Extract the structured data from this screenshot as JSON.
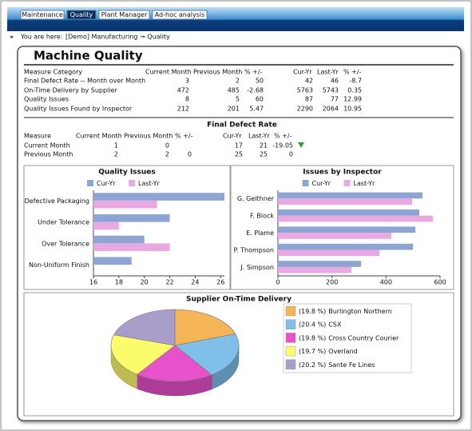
{
  "tabs": [
    "Maintenance",
    "Quality",
    "Plant Manager",
    "Ad-hoc analysis"
  ],
  "breadcrumb": {
    "label": "You are here:",
    "path": "[Demo] Manufacturing → Quality"
  },
  "title": "Machine Quality",
  "summary_table": {
    "headers": [
      "Measure Category",
      "Current Month",
      "Previous Month",
      "% +/-",
      "Cur-Yr",
      "Last-Yr",
      "% +/-"
    ],
    "rows": [
      [
        "Final Defect Rate -- Month over Month",
        3,
        2,
        50,
        42,
        46,
        -8.7
      ],
      [
        "On-Time Delivery by Supplier",
        472,
        485,
        -2.68,
        5763,
        5743,
        0.35
      ],
      [
        "Quality Issues",
        8,
        5,
        60,
        87,
        77,
        12.99
      ],
      [
        "Quality Issues Found by Inspector",
        212,
        201,
        5.47,
        2290,
        2064,
        10.95
      ]
    ]
  },
  "defect_table": {
    "title": "Final Defect Rate",
    "headers": [
      "Measure",
      "Current Month",
      "Previous Month",
      "% +/-",
      "Cur-Yr",
      "Last-Yr",
      "% +/-"
    ],
    "rows": [
      [
        "Current Month",
        1,
        0,
        null,
        17,
        21,
        -19.05
      ],
      [
        "Previous Month",
        2,
        2,
        0,
        25,
        25,
        0
      ]
    ]
  },
  "chart_data": [
    {
      "type": "hbar",
      "title": "Quality Issues",
      "categories": [
        "Defective Packaging",
        "Under Tolerance",
        "Over Tolerance",
        "Non-Uniform Finish"
      ],
      "series": [
        {
          "name": "Cur-Yr",
          "color": "#8ea5d4",
          "values": [
            26.3,
            22,
            20,
            19
          ]
        },
        {
          "name": "Last-Yr",
          "color": "#eaa8e2",
          "values": [
            21,
            18,
            22,
            null
          ]
        }
      ],
      "xlim": [
        16,
        26.3
      ],
      "xticks": [
        16,
        18,
        20,
        22,
        24,
        26
      ]
    },
    {
      "type": "hbar",
      "title": "Issues by Inspector",
      "categories": [
        "G. Geithner",
        "F. Block",
        "E. Plame",
        "P. Thompson",
        "J. Simpson"
      ],
      "series": [
        {
          "name": "Cur-Yr",
          "color": "#8ea5d4",
          "values": [
            535,
            523,
            509,
            500,
            308
          ]
        },
        {
          "name": "Last-Yr",
          "color": "#eaa8e2",
          "values": [
            497,
            574,
            420,
            376,
            272
          ]
        }
      ],
      "xlim": [
        0,
        600
      ],
      "xticks": [
        0,
        200,
        400,
        600
      ]
    },
    {
      "type": "pie3d",
      "title": "Supplier On-Time Delivery",
      "categories": [
        "Burlington Northern",
        "CSX",
        "Cross Country Courier",
        "Overland",
        "Sante Fe Lines"
      ],
      "values": [
        19.8,
        20.4,
        19.8,
        19.7,
        20.2
      ],
      "value_labels": [
        "(19.8 %)",
        "(20.4 %)",
        "(19.8 %)",
        "(19.7 %)",
        "(20.2 %)"
      ],
      "colors": [
        "#f5b556",
        "#7fbfea",
        "#e851cc",
        "#fbfb6c",
        "#a99dca"
      ]
    }
  ]
}
